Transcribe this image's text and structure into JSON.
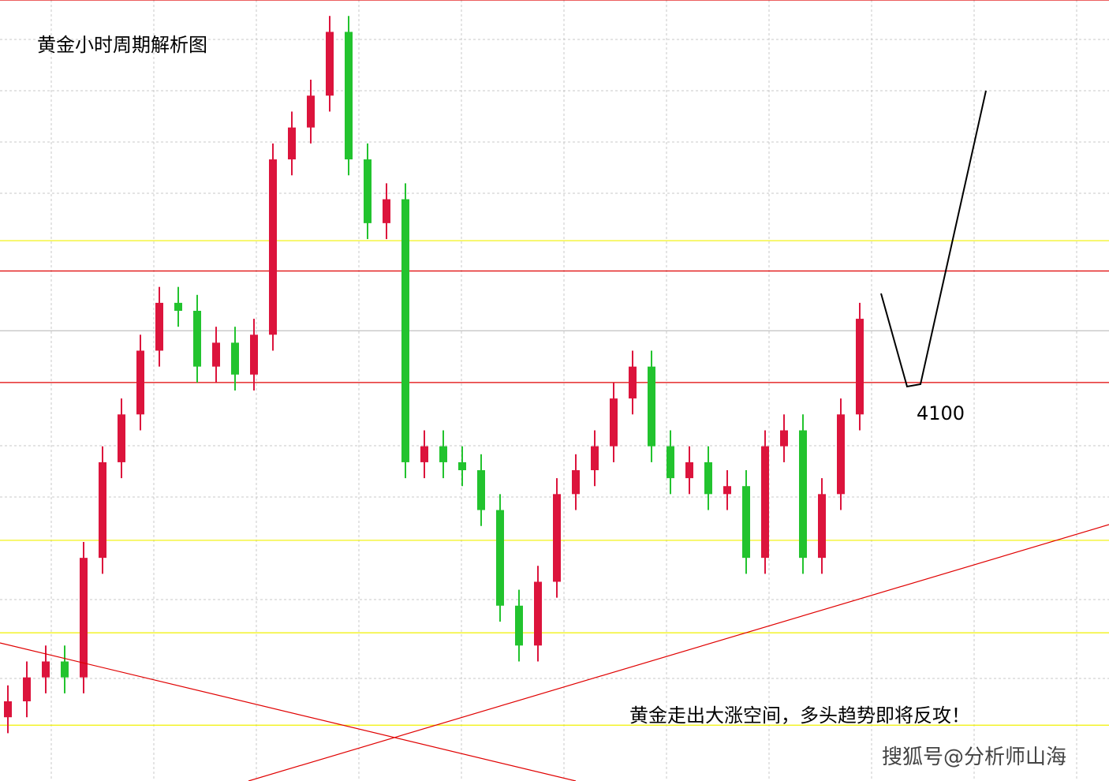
{
  "chart_data": {
    "type": "candlestick",
    "title": "黄金小时周期解析图",
    "annotation": "黄金走出大涨空间，多头趋势即将反攻！",
    "watermark": "搜狐号@分析师山海",
    "target_label": 4100,
    "ylim": [
      3850,
      4340
    ],
    "up_color": "#dc143c",
    "down_color": "#22c32e",
    "open": [
      3890,
      3900,
      3915,
      3925,
      3915,
      3990,
      4050,
      4080,
      4120,
      4150,
      4145,
      4110,
      4125,
      4105,
      4130,
      4240,
      4260,
      4280,
      4320,
      4240,
      4200,
      4215,
      4050,
      4060,
      4050,
      4045,
      4020,
      3960,
      3935,
      3975,
      4030,
      4045,
      4060,
      4090,
      4110,
      4060,
      4040,
      4050,
      4030,
      4035,
      3990,
      4060,
      4070,
      3990,
      4030,
      4080
    ],
    "close": [
      3900,
      3915,
      3925,
      3915,
      3990,
      4050,
      4080,
      4120,
      4150,
      4145,
      4110,
      4125,
      4105,
      4130,
      4240,
      4260,
      4280,
      4320,
      4240,
      4200,
      4215,
      4050,
      4060,
      4050,
      4045,
      4020,
      3960,
      3935,
      3975,
      4030,
      4045,
      4060,
      4090,
      4110,
      4060,
      4040,
      4050,
      4030,
      4035,
      3990,
      4060,
      4070,
      3990,
      4030,
      4080,
      4140
    ],
    "high": [
      3910,
      3925,
      3935,
      3935,
      4000,
      4060,
      4090,
      4130,
      4160,
      4160,
      4155,
      4135,
      4135,
      4140,
      4250,
      4270,
      4290,
      4330,
      4330,
      4250,
      4225,
      4225,
      4070,
      4070,
      4060,
      4055,
      4030,
      3970,
      3985,
      4040,
      4055,
      4070,
      4100,
      4120,
      4120,
      4070,
      4060,
      4060,
      4045,
      4045,
      4070,
      4080,
      4080,
      4040,
      4090,
      4150
    ],
    "low": [
      3880,
      3890,
      3905,
      3905,
      3905,
      3980,
      4040,
      4070,
      4110,
      4135,
      4100,
      4100,
      4095,
      4095,
      4120,
      4230,
      4250,
      4270,
      4230,
      4190,
      4190,
      4040,
      4040,
      4040,
      4035,
      4010,
      3950,
      3925,
      3925,
      3965,
      4020,
      4035,
      4050,
      4080,
      4050,
      4030,
      4030,
      4020,
      4020,
      3980,
      3980,
      4050,
      3980,
      3980,
      4020,
      4070
    ],
    "levels": [
      {
        "value": 4340,
        "color": "#e00000"
      },
      {
        "value": 4189,
        "color": "#f0f000"
      },
      {
        "value": 4170,
        "color": "#e00000"
      },
      {
        "value": 4132.5,
        "color": "#c0c0c0"
      },
      {
        "value": 4100,
        "color": "#e00000"
      },
      {
        "value": 4001,
        "color": "#f0f000"
      },
      {
        "value": 3943,
        "color": "#f0f000"
      },
      {
        "value": 3885,
        "color": "#f0f000"
      }
    ]
  }
}
